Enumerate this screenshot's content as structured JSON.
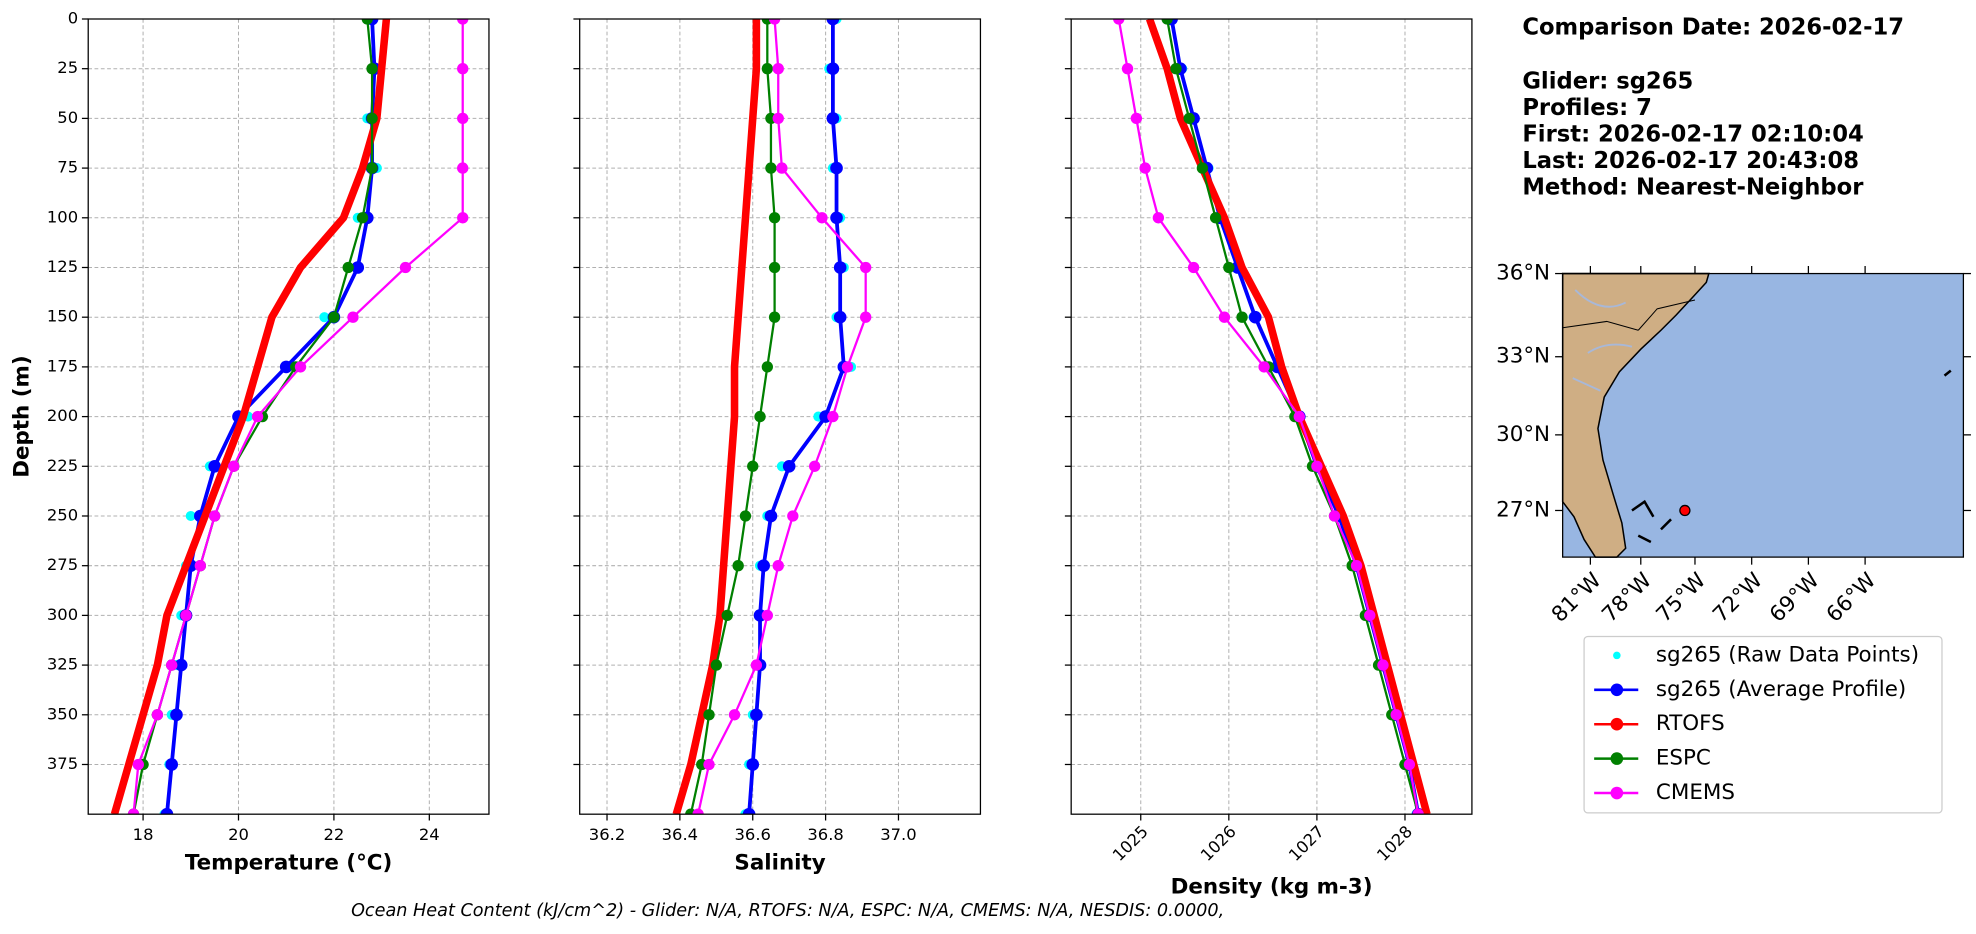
{
  "chart_data": [
    {
      "type": "line",
      "xlabel": "Temperature (°C)",
      "ylabel": "Depth (m)",
      "xlim": [
        16.85,
        25.25
      ],
      "xticks": [
        18,
        20,
        22,
        24
      ],
      "ylim": [
        400,
        0
      ],
      "yticks": [
        0,
        25,
        50,
        75,
        100,
        125,
        150,
        175,
        200,
        225,
        250,
        275,
        300,
        325,
        350,
        375
      ],
      "grid": true,
      "y": [
        0,
        25,
        50,
        75,
        100,
        125,
        150,
        175,
        200,
        225,
        250,
        275,
        300,
        325,
        350,
        375,
        400
      ],
      "series": [
        {
          "values": [
            22.7,
            22.9,
            22.7,
            22.9,
            22.5,
            22.3,
            21.8,
            21.3,
            20.2,
            19.4,
            19.0,
            18.9,
            18.8,
            18.7,
            18.6,
            18.55,
            18.45
          ]
        },
        {
          "values": [
            22.8,
            22.85,
            22.8,
            22.8,
            22.7,
            22.5,
            22.0,
            21.0,
            20.0,
            19.5,
            19.2,
            19.0,
            18.9,
            18.8,
            18.7,
            18.6,
            18.5
          ]
        },
        {
          "values": [
            23.1,
            23.0,
            22.9,
            22.6,
            22.2,
            21.3,
            20.7,
            20.4,
            20.1,
            19.7,
            19.3,
            18.9,
            18.5,
            18.3,
            18.0,
            17.7,
            17.4
          ]
        },
        {
          "values": [
            22.7,
            22.8,
            22.8,
            22.8,
            22.6,
            22.3,
            22.0,
            21.2,
            20.5,
            19.9,
            19.5,
            19.2,
            18.9,
            18.6,
            18.3,
            18.0,
            17.8
          ]
        },
        {
          "values": [
            24.7,
            24.7,
            24.7,
            24.7,
            24.7,
            23.5,
            22.4,
            21.3,
            20.4,
            19.9,
            19.5,
            19.2,
            18.9,
            18.6,
            18.3,
            17.9,
            17.8
          ]
        }
      ]
    },
    {
      "type": "line",
      "xlabel": "Salinity",
      "xlim": [
        36.125,
        37.225
      ],
      "xticks": [
        36.2,
        36.4,
        36.6,
        36.8,
        {
          "value": 37.0,
          "label": "37.0"
        }
      ],
      "ylim": [
        400,
        0
      ],
      "yticks": [
        0,
        25,
        50,
        75,
        100,
        125,
        150,
        175,
        200,
        225,
        250,
        275,
        300,
        325,
        350,
        375
      ],
      "grid": true,
      "y": [
        0,
        25,
        50,
        75,
        100,
        125,
        150,
        175,
        200,
        225,
        250,
        275,
        300,
        325,
        350,
        375,
        400
      ],
      "series": [
        {
          "values": [
            36.83,
            36.81,
            36.83,
            36.82,
            36.84,
            36.85,
            36.83,
            36.87,
            36.78,
            36.68,
            36.64,
            36.62,
            36.63,
            36.61,
            36.6,
            36.59,
            36.58
          ]
        },
        {
          "values": [
            36.82,
            36.82,
            36.82,
            36.83,
            36.83,
            36.84,
            36.84,
            36.85,
            36.8,
            36.7,
            36.65,
            36.63,
            36.62,
            36.62,
            36.61,
            36.6,
            36.59
          ]
        },
        {
          "values": [
            36.61,
            36.61,
            36.6,
            36.59,
            36.58,
            36.57,
            36.56,
            36.55,
            36.55,
            36.54,
            36.53,
            36.52,
            36.51,
            36.49,
            36.46,
            36.43,
            36.39
          ]
        },
        {
          "values": [
            36.64,
            36.64,
            36.65,
            36.65,
            36.66,
            36.66,
            36.66,
            36.64,
            36.62,
            36.6,
            36.58,
            36.56,
            36.53,
            36.5,
            36.48,
            36.46,
            36.43
          ]
        },
        {
          "values": [
            36.66,
            36.67,
            36.67,
            36.68,
            36.79,
            36.91,
            36.91,
            36.86,
            36.82,
            36.77,
            36.71,
            36.67,
            36.64,
            36.61,
            36.55,
            36.48,
            36.45
          ]
        }
      ]
    },
    {
      "type": "line",
      "xlabel": "Density (kg m-3)",
      "xlim": [
        1024.21,
        1028.76
      ],
      "xticks": [
        1025,
        1026,
        1027,
        1028
      ],
      "ylim": [
        400,
        0
      ],
      "yticks": [
        0,
        25,
        50,
        75,
        100,
        125,
        150,
        175,
        200,
        225,
        250,
        275,
        300,
        325,
        350,
        375
      ],
      "grid": true,
      "y": [
        0,
        25,
        50,
        75,
        100,
        125,
        150,
        175,
        200,
        225,
        250,
        275,
        300,
        325,
        350,
        375,
        400
      ],
      "series": [
        {
          "values": [
            1025.33,
            1025.47,
            1025.58,
            1025.77,
            1025.88,
            1026.12,
            1026.28,
            1026.57,
            1026.78,
            1027.02,
            1027.23,
            1027.47,
            1027.58,
            1027.77,
            1027.88,
            1028.07,
            1028.13
          ]
        },
        {
          "values": [
            1025.35,
            1025.45,
            1025.6,
            1025.75,
            1025.9,
            1026.1,
            1026.3,
            1026.55,
            1026.8,
            1027.0,
            1027.25,
            1027.45,
            1027.6,
            1027.75,
            1027.9,
            1028.05,
            1028.15
          ]
        },
        {
          "values": [
            1025.1,
            1025.3,
            1025.45,
            1025.7,
            1025.95,
            1026.15,
            1026.45,
            1026.6,
            1026.8,
            1027.05,
            1027.3,
            1027.5,
            1027.65,
            1027.8,
            1027.95,
            1028.1,
            1028.25
          ]
        },
        {
          "values": [
            1025.3,
            1025.4,
            1025.55,
            1025.7,
            1025.85,
            1026.0,
            1026.15,
            1026.45,
            1026.75,
            1026.95,
            1027.2,
            1027.4,
            1027.55,
            1027.7,
            1027.85,
            1028.0,
            1028.15
          ]
        },
        {
          "values": [
            1024.75,
            1024.85,
            1024.95,
            1025.05,
            1025.2,
            1025.6,
            1025.95,
            1026.4,
            1026.8,
            1027.0,
            1027.2,
            1027.45,
            1027.6,
            1027.75,
            1027.9,
            1028.05,
            1028.15
          ]
        }
      ]
    }
  ],
  "legend": [
    {
      "name": "sg265 (Raw Data Points)",
      "color": "#00ffff",
      "style": "points"
    },
    {
      "name": "sg265 (Average Profile)",
      "color": "#0000ff",
      "style": "line-marker"
    },
    {
      "name": "RTOFS",
      "color": "#ff0000",
      "style": "thick-line"
    },
    {
      "name": "ESPC",
      "color": "#008000",
      "style": "line-marker"
    },
    {
      "name": "CMEMS",
      "color": "#ff00ff",
      "style": "line-marker"
    }
  ],
  "info": [
    "Comparison Date: 2026-02-17",
    "Glider: sg265",
    "Profiles: 7",
    "First: 2026-02-17 02:10:04",
    "Last: 2026-02-17 20:43:08",
    "Method: Nearest-Neighbor"
  ],
  "map": {
    "lat_labels": [
      "36°N",
      "33°N",
      "30°N",
      "27°N"
    ],
    "lon_labels": [
      "81°W",
      "78°W",
      "75°W",
      "72°W",
      "69°W",
      "66°W"
    ]
  },
  "footer": "Ocean Heat Content (kJ/cm^2) - Glider: N/A,  RTOFS: N/A,  ESPC: N/A,  CMEMS: N/A,  NESDIS: 0.0000,"
}
